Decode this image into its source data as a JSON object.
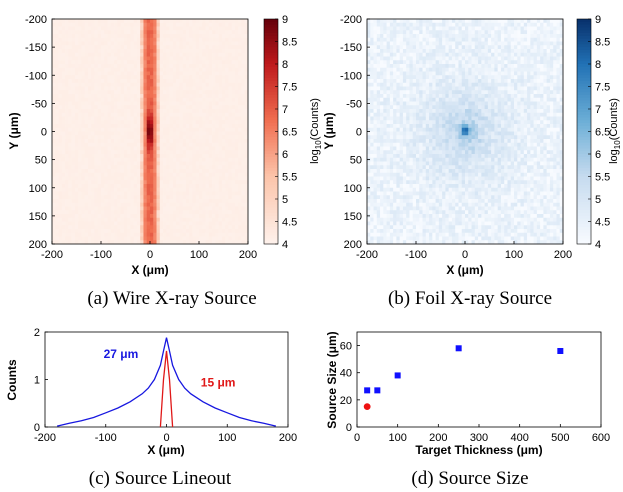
{
  "colors": {
    "wire_heat": "#c81414",
    "foil_heat": "#1565a8",
    "lineout_wire": "#1818e0",
    "lineout_foil": "#e01818",
    "marker_blue": "#1010ff",
    "marker_red": "#ee1111"
  },
  "chart_data": [
    {
      "id": "a",
      "type": "heatmap",
      "caption": "(a) Wire X-ray Source",
      "xlabel": "X (μm)",
      "ylabel": "Y (μm)",
      "xlim": [
        -200,
        200
      ],
      "ylim": [
        -200,
        200
      ],
      "y_reversed": true,
      "x_ticks": [
        -200,
        -100,
        0,
        100,
        200
      ],
      "y_ticks": [
        -200,
        -150,
        -100,
        -50,
        0,
        50,
        100,
        150,
        200
      ],
      "colorbar": {
        "label": "log10(Counts)",
        "min": 4,
        "max": 9,
        "ticks": [
          4,
          4.5,
          5,
          5.5,
          6,
          6.5,
          7,
          7.5,
          8,
          8.5,
          9
        ]
      },
      "description_shape": "vertical band centered at X=0, width about 20 um, values ~6-7 along band, peak ~9 at (0,0), background ~4"
    },
    {
      "id": "b",
      "type": "heatmap",
      "caption": "(b) Foil X-ray Source",
      "xlabel": "X (μm)",
      "ylabel": "Y (μm)",
      "xlim": [
        -200,
        200
      ],
      "ylim": [
        -200,
        200
      ],
      "y_reversed": true,
      "x_ticks": [
        -200,
        -100,
        0,
        100,
        200
      ],
      "y_ticks": [
        -200,
        -150,
        -100,
        -50,
        0,
        50,
        100,
        150,
        200
      ],
      "colorbar": {
        "label": "log10(Counts)",
        "min": 4,
        "max": 9,
        "ticks": [
          4,
          4.5,
          5,
          5.5,
          6,
          6.5,
          7,
          7.5,
          8,
          8.5,
          9
        ]
      },
      "description_shape": "radially symmetric spot at (0,0), peak ~9, noisy background ~4-5"
    },
    {
      "id": "c",
      "type": "line",
      "caption": "(c) Source Lineout",
      "xlabel": "X (μm)",
      "ylabel": "Counts",
      "xlim": [
        -200,
        200
      ],
      "ylim": [
        0,
        2
      ],
      "x_ticks": [
        -200,
        -100,
        0,
        100,
        200
      ],
      "y_ticks": [
        0,
        1,
        2
      ],
      "annotations": [
        {
          "text": "27 μm",
          "x": -75,
          "y": 1.45,
          "color": "#1818e0"
        },
        {
          "text": "15 μm",
          "x": 85,
          "y": 0.85,
          "color": "#e01818"
        }
      ],
      "series": [
        {
          "x": [
            -180,
            -160,
            -140,
            -120,
            -100,
            -80,
            -60,
            -40,
            -30,
            -20,
            -10,
            -5,
            0,
            5,
            10,
            20,
            30,
            40,
            60,
            80,
            100,
            120,
            140,
            160,
            180
          ],
          "y": [
            0.02,
            0.08,
            0.13,
            0.2,
            0.3,
            0.4,
            0.53,
            0.7,
            0.82,
            1.0,
            1.3,
            1.6,
            1.88,
            1.6,
            1.3,
            1.0,
            0.82,
            0.7,
            0.53,
            0.4,
            0.3,
            0.2,
            0.13,
            0.08,
            0.02
          ]
        },
        {
          "x": [
            -10,
            -5,
            0,
            5,
            10
          ],
          "y": [
            0.0,
            1.0,
            1.6,
            1.0,
            0.0
          ]
        }
      ]
    },
    {
      "id": "d",
      "type": "scatter",
      "caption": "(d) Source Size",
      "xlabel": "Target Thickness (μm)",
      "ylabel": "Source Size (μm)",
      "xlim": [
        0,
        600
      ],
      "ylim": [
        0,
        70
      ],
      "x_ticks": [
        0,
        100,
        200,
        300,
        400,
        500,
        600
      ],
      "y_ticks": [
        0,
        20,
        40,
        60
      ],
      "series": [
        {
          "marker": "square",
          "color": "#1010ff",
          "points": [
            [
              25,
              27
            ],
            [
              50,
              27
            ],
            [
              100,
              38
            ],
            [
              250,
              58
            ],
            [
              500,
              56
            ]
          ]
        },
        {
          "marker": "circle",
          "color": "#ee1111",
          "points": [
            [
              25,
              15
            ]
          ]
        }
      ]
    }
  ]
}
